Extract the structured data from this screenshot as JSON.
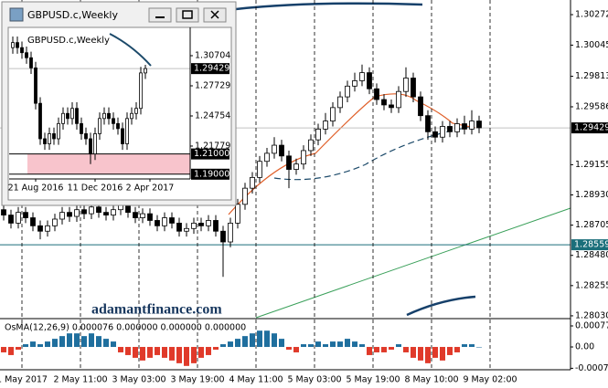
{
  "watermark": "adamantfinance.com",
  "chart_data": [
    {
      "type": "candlestick",
      "up_color": "#ffffff",
      "down_color": "#000000",
      "edge_color": "#000000",
      "open": [
        1.2882,
        1.2878,
        1.2872,
        1.288,
        1.2876,
        1.287,
        1.2866,
        1.287,
        1.2875,
        1.288,
        1.2877,
        1.2882,
        1.2879,
        1.2884,
        1.288,
        1.2878,
        1.2882,
        1.2886,
        1.288,
        1.2876,
        1.2879,
        1.2874,
        1.287,
        1.2876,
        1.2872,
        1.2866,
        1.2868,
        1.2872,
        1.287,
        1.2874,
        1.2866,
        1.2858,
        1.2872,
        1.2886,
        1.2898,
        1.2906,
        1.2918,
        1.2924,
        1.293,
        1.2922,
        1.2912,
        1.2916,
        1.2926,
        1.2934,
        1.2942,
        1.2948,
        1.2958,
        1.2966,
        1.2974,
        1.2978,
        1.2984,
        1.2972,
        1.2964,
        1.296,
        1.2958,
        1.297,
        1.298,
        1.2966,
        1.2952,
        1.294,
        1.2936,
        1.2944,
        1.294,
        1.2946,
        1.2942,
        1.2948
      ],
      "high": [
        1.2886,
        1.2882,
        1.2884,
        1.2884,
        1.288,
        1.2874,
        1.2874,
        1.2879,
        1.2884,
        1.2884,
        1.2886,
        1.2886,
        1.2888,
        1.2888,
        1.2884,
        1.2886,
        1.289,
        1.289,
        1.2884,
        1.2883,
        1.2883,
        1.2878,
        1.288,
        1.288,
        1.2876,
        1.2872,
        1.2876,
        1.2876,
        1.2878,
        1.2878,
        1.287,
        1.2876,
        1.289,
        1.2902,
        1.291,
        1.2922,
        1.2928,
        1.2936,
        1.2934,
        1.2926,
        1.292,
        1.293,
        1.2938,
        1.2946,
        1.2954,
        1.2962,
        1.297,
        1.2978,
        1.2984,
        1.299,
        1.2988,
        1.2976,
        1.2968,
        1.2964,
        1.2974,
        1.2988,
        1.2984,
        1.297,
        1.2956,
        1.2944,
        1.2948,
        1.2948,
        1.295,
        1.2952,
        1.2956,
        1.2952
      ],
      "low": [
        1.2874,
        1.2868,
        1.2868,
        1.2872,
        1.2866,
        1.286,
        1.2862,
        1.2866,
        1.2871,
        1.2873,
        1.2873,
        1.2875,
        1.2875,
        1.2876,
        1.2874,
        1.2874,
        1.2878,
        1.2876,
        1.2872,
        1.2872,
        1.287,
        1.2866,
        1.2866,
        1.2868,
        1.2862,
        1.2862,
        1.2864,
        1.2866,
        1.2866,
        1.2862,
        1.2832,
        1.2854,
        1.2868,
        1.2882,
        1.2894,
        1.2902,
        1.2914,
        1.292,
        1.2918,
        1.2898,
        1.2908,
        1.2912,
        1.2922,
        1.293,
        1.2938,
        1.2944,
        1.2954,
        1.2962,
        1.297,
        1.2974,
        1.2968,
        1.296,
        1.2956,
        1.2954,
        1.2954,
        1.2966,
        1.2962,
        1.2948,
        1.2934,
        1.2932,
        1.2932,
        1.2936,
        1.2936,
        1.2938,
        1.2938,
        1.2939
      ],
      "close": [
        1.2878,
        1.2872,
        1.288,
        1.2876,
        1.287,
        1.2866,
        1.287,
        1.2875,
        1.288,
        1.2877,
        1.2882,
        1.2879,
        1.2884,
        1.288,
        1.2878,
        1.2882,
        1.2886,
        1.288,
        1.2876,
        1.2879,
        1.2874,
        1.287,
        1.2876,
        1.2872,
        1.2866,
        1.2868,
        1.2872,
        1.287,
        1.2874,
        1.2866,
        1.2858,
        1.2872,
        1.2886,
        1.2898,
        1.2906,
        1.2918,
        1.2924,
        1.293,
        1.2922,
        1.2912,
        1.2916,
        1.2926,
        1.2934,
        1.2942,
        1.2948,
        1.2958,
        1.2966,
        1.2974,
        1.2978,
        1.2984,
        1.2972,
        1.2964,
        1.296,
        1.2958,
        1.297,
        1.298,
        1.2966,
        1.2952,
        1.294,
        1.2936,
        1.2944,
        1.294,
        1.2946,
        1.2942,
        1.2948,
        1.2943
      ],
      "xlim": [
        -0.5,
        77.5
      ],
      "xticks": [
        {
          "value": 2.5,
          "label": "1 May 2017"
        },
        {
          "value": 10.5,
          "label": "2 May 11:00"
        },
        {
          "value": 18.5,
          "label": "3 May 03:00"
        },
        {
          "value": 26.5,
          "label": "3 May 19:00"
        },
        {
          "value": 34.5,
          "label": "4 May 11:00"
        },
        {
          "value": 42.5,
          "label": "5 May 03:00"
        },
        {
          "value": 50.5,
          "label": "5 May 19:00"
        },
        {
          "value": 58.5,
          "label": "8 May 10:00"
        },
        {
          "value": 66.5,
          "label": "9 May 02:00"
        }
      ],
      "ylim": [
        1.28016,
        1.30381
      ],
      "yticks": [
        1.30272,
        1.30045,
        1.29813,
        1.29586,
        1.29155,
        {
          "value": 1.2893,
          "label": "1.28930"
        },
        1.28705,
        {
          "value": 1.2848,
          "label": "1.28480"
        },
        1.28255,
        {
          "value": 1.2803,
          "label": "1.28030"
        }
      ],
      "hlines": [
        1.29429,
        1.28559
      ],
      "hline_colors": [
        "#c0c0c0",
        "#1a6e7a"
      ],
      "hline_label_colors": [
        "#000000",
        "#1a6e7a"
      ]
    },
    {
      "type": "bar",
      "label": "OsMA(12,26,9) 0.000076 0.000000 0.000000 0.000000",
      "pos_color": "#1f6f9e",
      "neg_color": "#e03a2a",
      "values": [
        -0.0002,
        -0.0003,
        -0.0001,
        0.0001,
        0.0002,
        0.0001,
        0.0002,
        0.0003,
        0.0004,
        0.0005,
        0.0005,
        0.0004,
        0.0005,
        0.0004,
        0.0003,
        0.0002,
        -0.0002,
        -0.0003,
        -0.0004,
        -0.0005,
        -0.0004,
        -0.0003,
        -0.0004,
        -0.0005,
        -0.0006,
        -0.0007,
        -0.0006,
        -0.0004,
        -0.0003,
        -0.0001,
        0.0001,
        0.0002,
        0.0003,
        0.0004,
        0.0005,
        0.0006,
        0.0006,
        0.0005,
        0.0003,
        -0.0001,
        -0.0002,
        0.0001,
        0.0001,
        0.0002,
        0.0001,
        0.0002,
        0.0002,
        0.0003,
        0.0002,
        0.0001,
        -0.0003,
        -0.0002,
        -0.0002,
        -0.0001,
        0.0001,
        -0.0002,
        -0.0004,
        -0.0005,
        -0.0006,
        -0.0004,
        -0.0005,
        -0.0003,
        -0.0002,
        0.0001,
        0.0001,
        0.0
      ],
      "ylim": [
        -0.00084,
        0.00101
      ],
      "yticks": [
        0.000775,
        {
          "value": 0,
          "label": "0.00"
        },
        -0.000786
      ]
    },
    {
      "type": "candlestick",
      "window_title": "GBPUSD.c,Weekly",
      "title": "GBPUSD.c,Weekly",
      "up_color": "#ffffff",
      "down_color": "#000000",
      "edge_color": "#000000",
      "open": [
        1.315,
        1.32,
        1.315,
        1.31,
        1.305,
        1.295,
        1.26,
        1.225,
        1.22,
        1.23,
        1.225,
        1.24,
        1.25,
        1.245,
        1.255,
        1.24,
        1.23,
        1.225,
        1.21,
        1.23,
        1.245,
        1.25,
        1.245,
        1.24,
        1.235,
        1.22,
        1.245,
        1.25,
        1.255,
        1.29
      ],
      "high": [
        1.326,
        1.326,
        1.321,
        1.316,
        1.311,
        1.301,
        1.266,
        1.231,
        1.236,
        1.236,
        1.246,
        1.256,
        1.256,
        1.261,
        1.261,
        1.246,
        1.236,
        1.231,
        1.236,
        1.251,
        1.256,
        1.256,
        1.251,
        1.246,
        1.241,
        1.251,
        1.256,
        1.261,
        1.296,
        1.298
      ],
      "low": [
        1.309,
        1.309,
        1.304,
        1.299,
        1.289,
        1.254,
        1.219,
        1.214,
        1.214,
        1.219,
        1.219,
        1.234,
        1.239,
        1.239,
        1.234,
        1.224,
        1.219,
        1.2,
        1.204,
        1.224,
        1.239,
        1.239,
        1.234,
        1.229,
        1.214,
        1.214,
        1.239,
        1.244,
        1.249,
        1.284
      ],
      "close": [
        1.32,
        1.315,
        1.31,
        1.305,
        1.295,
        1.26,
        1.225,
        1.22,
        1.23,
        1.225,
        1.24,
        1.25,
        1.245,
        1.255,
        1.24,
        1.23,
        1.225,
        1.21,
        1.23,
        1.245,
        1.25,
        1.245,
        1.24,
        1.235,
        1.22,
        1.245,
        1.25,
        1.255,
        1.29,
        1.2943
      ],
      "xlim": [
        -0.8,
        38.8
      ],
      "xticks": [
        {
          "value": 5,
          "label": "21 Aug 2016"
        },
        {
          "value": 18,
          "label": "11 Dec 2016"
        },
        {
          "value": 30,
          "label": "2 Apr 2017"
        }
      ],
      "ylim": [
        1.18892,
        1.33048
      ],
      "yticks": [
        1.30704,
        1.27729,
        1.24754,
        1.21779
      ],
      "hlines": [
        1.29429,
        {
          "value": 1.21,
          "label": "1.21000"
        },
        {
          "value": 1.19,
          "label": "1.19000"
        }
      ],
      "hline_colors": [
        "#c0c0c0",
        "#000000",
        "#000000"
      ],
      "hline_label_colors": [
        "#000000",
        "#000000",
        "#000000"
      ],
      "zone_color": "#f8c4cc"
    }
  ]
}
